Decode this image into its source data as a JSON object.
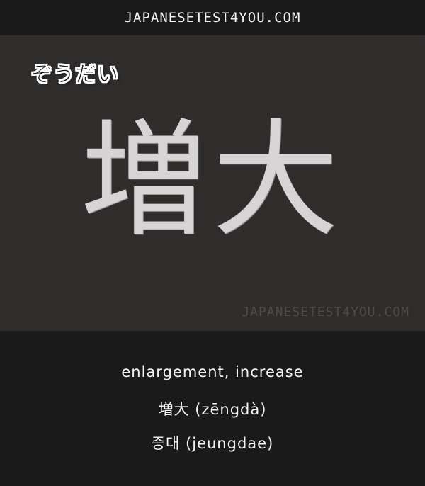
{
  "header": {
    "site": "JAPANESETEST4YOU.COM"
  },
  "card": {
    "reading": "ぞうだい",
    "kanji": "増大",
    "watermark": "JAPANESETEST4YOU.COM"
  },
  "meanings": {
    "english": "enlargement, increase",
    "chinese": "増大 (zēngdà)",
    "korean": "증대 (jeungdae)"
  }
}
